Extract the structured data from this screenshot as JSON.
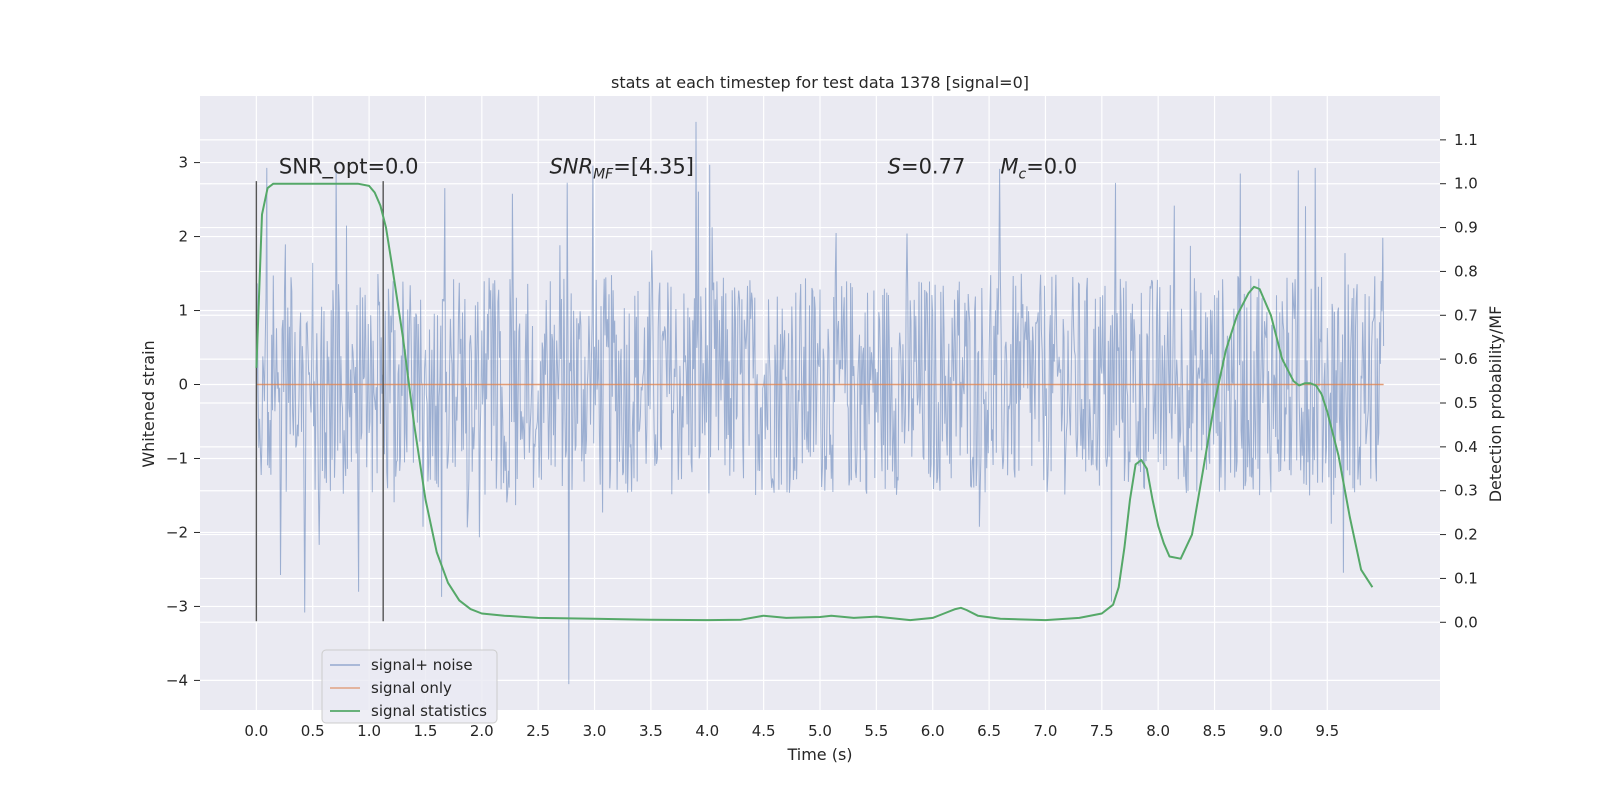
{
  "chart_data": {
    "type": "line",
    "title": "stats at each timestep for test data 1378 [signal=0]",
    "xlabel": "Time (s)",
    "ylabel": "Whitened strain",
    "ylabel_right": "Detection probability/MF",
    "xlim": [
      -0.5,
      10.5
    ],
    "ylim": [
      -4.4,
      3.9
    ],
    "ylim_right": [
      -0.2,
      1.2
    ],
    "x_ticks": [
      0.0,
      0.5,
      1.0,
      1.5,
      2.0,
      2.5,
      3.0,
      3.5,
      4.0,
      4.5,
      5.0,
      5.5,
      6.0,
      6.5,
      7.0,
      7.5,
      8.0,
      8.5,
      9.0,
      9.5
    ],
    "x_tick_labels": [
      "0.0",
      "0.5",
      "1.0",
      "1.5",
      "2.0",
      "2.5",
      "3.0",
      "3.5",
      "4.0",
      "4.5",
      "5.0",
      "5.5",
      "6.0",
      "6.5",
      "7.0",
      "7.5",
      "8.0",
      "8.5",
      "9.0",
      "9.5"
    ],
    "y_ticks": [
      -4,
      -3,
      -2,
      -1,
      0,
      1,
      2,
      3
    ],
    "y_tick_labels": [
      "−4",
      "−3",
      "−2",
      "−1",
      "0",
      "1",
      "2",
      "3"
    ],
    "y_right_ticks": [
      0.0,
      0.1,
      0.2,
      0.3,
      0.4,
      0.5,
      0.6,
      0.7,
      0.8,
      0.9,
      1.0,
      1.1
    ],
    "y_right_tick_labels": [
      "0.0",
      "0.1",
      "0.2",
      "0.3",
      "0.4",
      "0.5",
      "0.6",
      "0.7",
      "0.8",
      "0.9",
      "1.0",
      "1.1"
    ],
    "grid": true,
    "legend_placement": "lower-left",
    "annotations": [
      {
        "id": "snr-opt",
        "text": "SNR_opt=0.0",
        "x": 0.2,
        "y": 2.85
      },
      {
        "id": "snr-mf",
        "text": "SNR",
        "sub": "MF",
        "rest": "=[4.35]",
        "italic": true,
        "x": 2.6,
        "y": 2.85
      },
      {
        "id": "s-stat",
        "text": "S",
        "rest": "=0.77",
        "italic": true,
        "x": 5.6,
        "y": 2.85
      },
      {
        "id": "mc",
        "text": "M",
        "sub": "c",
        "rest": "=0.0",
        "italic": true,
        "x": 6.6,
        "y": 2.85
      }
    ],
    "vertical_markers": [
      {
        "x": 0.0,
        "y0": -3.2,
        "y1": 2.75
      },
      {
        "x": 1.125,
        "y0": -3.2,
        "y1": 2.75
      }
    ],
    "series": [
      {
        "name": "signal+ noise",
        "color": "#4c72b0",
        "axis": "left",
        "kind": "noise",
        "x_range": [
          0.0,
          10.0
        ],
        "band": [
          -1.5,
          1.5
        ],
        "extremes": [
          -4.05,
          3.55
        ]
      },
      {
        "name": "signal only",
        "color": "#dd8452",
        "axis": "left",
        "x": [
          0.0,
          10.0
        ],
        "y": [
          0.0,
          0.0
        ]
      },
      {
        "name": "signal statistics",
        "color": "#55a868",
        "axis": "right",
        "x": [
          0.0,
          0.05,
          0.1,
          0.15,
          0.2,
          0.3,
          0.5,
          0.7,
          0.9,
          1.0,
          1.05,
          1.1,
          1.15,
          1.2,
          1.3,
          1.4,
          1.5,
          1.6,
          1.7,
          1.8,
          1.9,
          2.0,
          2.2,
          2.5,
          3.0,
          3.5,
          4.0,
          4.3,
          4.5,
          4.7,
          5.0,
          5.1,
          5.3,
          5.5,
          5.8,
          6.0,
          6.1,
          6.2,
          6.25,
          6.3,
          6.4,
          6.6,
          7.0,
          7.3,
          7.5,
          7.6,
          7.65,
          7.7,
          7.75,
          7.8,
          7.85,
          7.9,
          7.95,
          8.0,
          8.05,
          8.1,
          8.2,
          8.3,
          8.4,
          8.5,
          8.6,
          8.7,
          8.8,
          8.85,
          8.9,
          9.0,
          9.1,
          9.2,
          9.25,
          9.3,
          9.35,
          9.4,
          9.45,
          9.5,
          9.6,
          9.7,
          9.8,
          9.9
        ],
        "y": [
          0.58,
          0.93,
          0.99,
          1.0,
          1.0,
          1.0,
          1.0,
          1.0,
          1.0,
          0.995,
          0.98,
          0.95,
          0.9,
          0.82,
          0.65,
          0.45,
          0.28,
          0.16,
          0.09,
          0.05,
          0.03,
          0.02,
          0.015,
          0.01,
          0.008,
          0.006,
          0.005,
          0.006,
          0.015,
          0.01,
          0.012,
          0.015,
          0.01,
          0.013,
          0.005,
          0.01,
          0.02,
          0.03,
          0.033,
          0.028,
          0.015,
          0.008,
          0.005,
          0.01,
          0.02,
          0.04,
          0.08,
          0.17,
          0.28,
          0.36,
          0.37,
          0.35,
          0.28,
          0.22,
          0.18,
          0.15,
          0.145,
          0.2,
          0.35,
          0.5,
          0.62,
          0.7,
          0.75,
          0.765,
          0.76,
          0.7,
          0.6,
          0.55,
          0.54,
          0.545,
          0.545,
          0.54,
          0.52,
          0.48,
          0.38,
          0.24,
          0.12,
          0.08
        ]
      }
    ]
  }
}
